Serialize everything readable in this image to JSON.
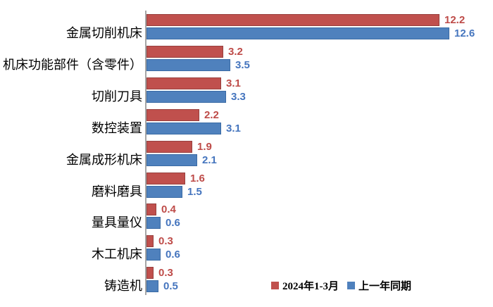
{
  "chart_data": {
    "type": "bar",
    "orientation": "horizontal",
    "title": "",
    "xlabel": "",
    "ylabel": "",
    "xlim": [
      0,
      14.4
    ],
    "grid": false,
    "data_labels": true,
    "legend_position": "bottom-right",
    "axis_color": "#a6a6a6",
    "categories": [
      "金属切削机床",
      "机床功能部件（含零件）",
      "切削刀具",
      "数控装置",
      "金属成形机床",
      "磨料磨具",
      "量具量仪",
      "木工机床",
      "铸造机"
    ],
    "series": [
      {
        "name": "2024年1-3月",
        "color": "#c0504d",
        "border_color": "#97403e",
        "label_color": "#be4b48",
        "values": [
          12.2,
          3.2,
          3.1,
          2.2,
          1.9,
          1.6,
          0.4,
          0.3,
          0.3
        ]
      },
      {
        "name": "上一年同期",
        "color": "#4f81bd",
        "border_color": "#3a6ba5",
        "label_color": "#4575be",
        "values": [
          12.6,
          3.5,
          3.3,
          3.1,
          2.1,
          1.5,
          0.6,
          0.6,
          0.5
        ]
      }
    ]
  }
}
